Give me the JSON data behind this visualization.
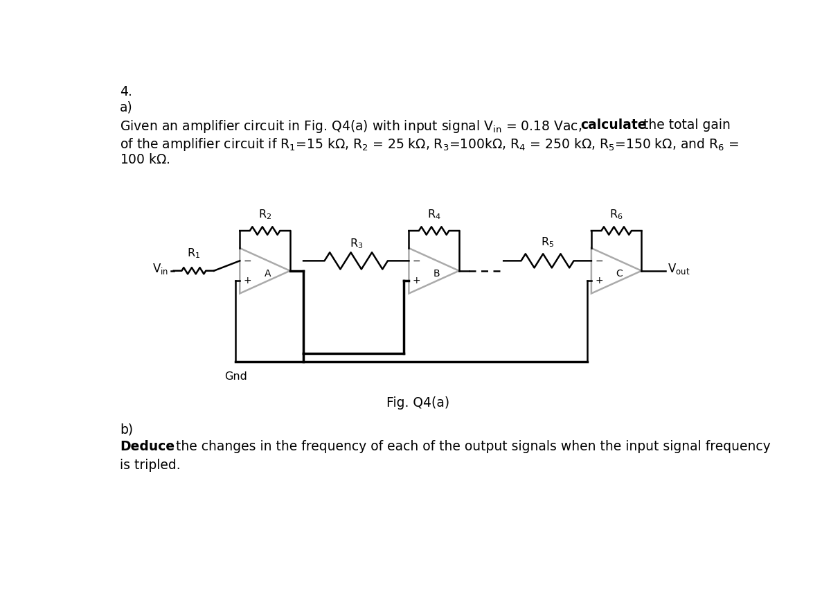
{
  "title_number": "4.",
  "part_a_label": "a)",
  "fig_caption": "Fig. Q4(a)",
  "part_b_label": "b)",
  "bg_color": "#ffffff",
  "text_color": "#000000",
  "circuit_color": "#000000",
  "opamp_color": "#aaaaaa",
  "lw": 1.8,
  "lw_thick": 2.5,
  "font_size": 13.5,
  "opamp_size": 0.85
}
